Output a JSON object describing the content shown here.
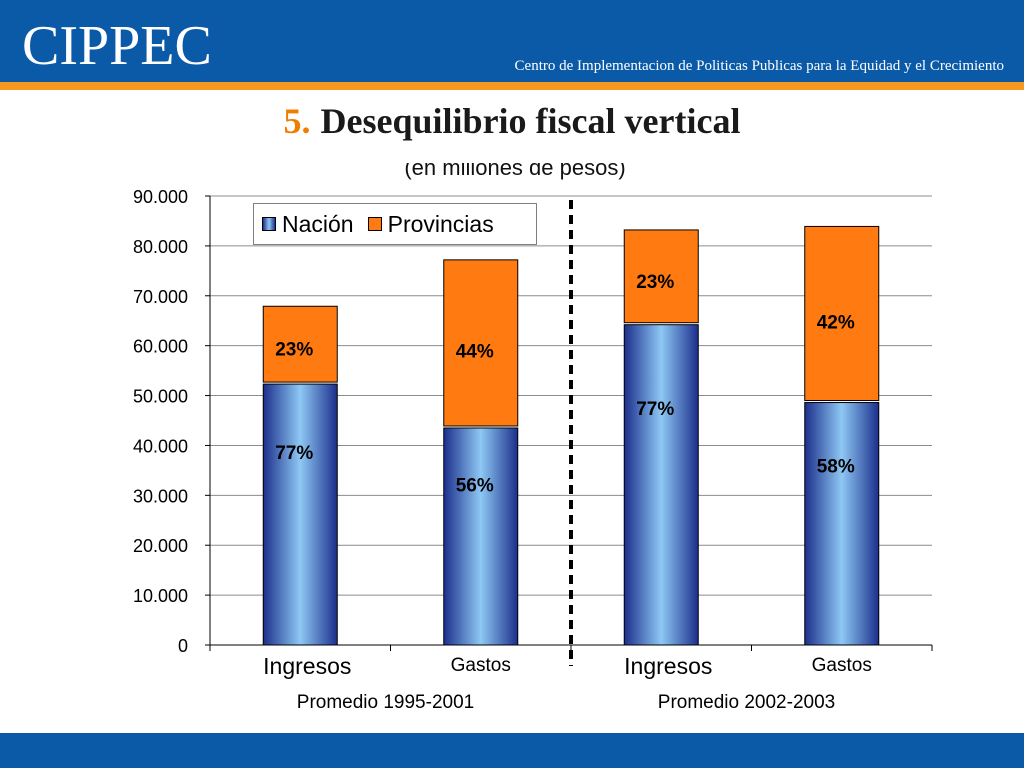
{
  "header": {
    "logo": "CIPPEC",
    "org_name": "Centro de Implementacion de Politicas Publicas para la Equidad y el Crecimiento"
  },
  "slide": {
    "number": "5.",
    "title": "Desequilibrio fiscal vertical"
  },
  "colors": {
    "header_blue": "#0a5aa8",
    "accent_orange": "#f79820",
    "title_number": "#f07d00",
    "nacion_dark": "#1c2f8c",
    "nacion_light": "#8ec8f4",
    "provincias": "#ff7a10"
  },
  "chart_data": {
    "type": "bar",
    "stacked": true,
    "subtitle": "(en millones de pesos)",
    "ylim": [
      0,
      90000
    ],
    "yticks": [
      0,
      10000,
      20000,
      30000,
      40000,
      50000,
      60000,
      70000,
      80000,
      90000
    ],
    "ytick_labels": [
      "0",
      "10.000",
      "20.000",
      "30.000",
      "40.000",
      "50.000",
      "60.000",
      "70.000",
      "80.000",
      "90.000"
    ],
    "grid": true,
    "legend_position": "top-left",
    "categories": [
      "Ingresos",
      "Gastos",
      "Ingresos",
      "Gastos"
    ],
    "groups": [
      "Promedio 1995-2001",
      "Promedio 2002-2003"
    ],
    "series": [
      {
        "name": "Nación",
        "values": [
          52300,
          43500,
          64200,
          48600
        ],
        "labels": [
          "77%",
          "56%",
          "77%",
          "58%"
        ]
      },
      {
        "name": "Provincias",
        "values": [
          15600,
          33700,
          19000,
          35300
        ],
        "labels": [
          "23%",
          "44%",
          "23%",
          "42%"
        ]
      }
    ]
  }
}
